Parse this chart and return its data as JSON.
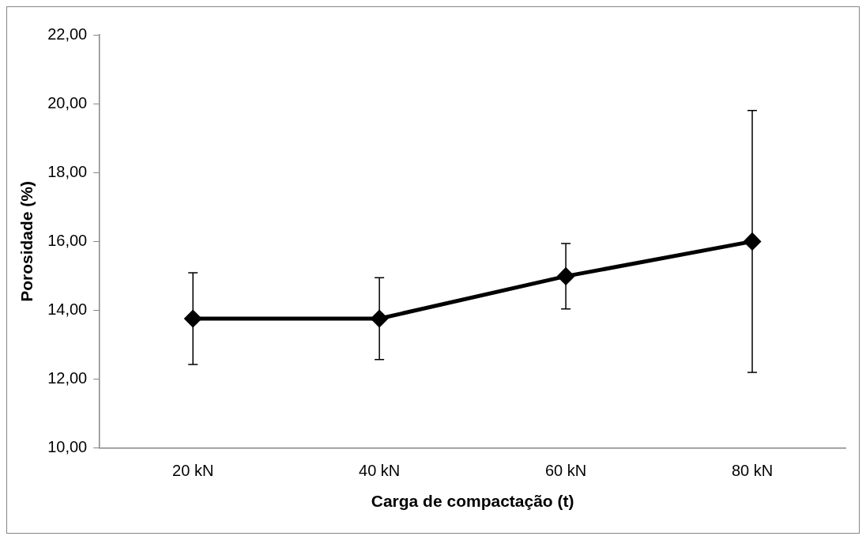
{
  "chart_data": {
    "type": "line",
    "xlabel": "Carga de compactação (t)",
    "ylabel": "Porosidade (%)",
    "categories": [
      "20 kN",
      "40 kN",
      "60 kN",
      "80 kN"
    ],
    "series": [
      {
        "color": "#000000",
        "values": [
          13.76,
          13.76,
          14.99,
          16.0
        ],
        "errors": [
          1.33,
          1.19,
          0.95,
          3.8
        ]
      }
    ],
    "ylim": [
      10,
      22
    ],
    "yticks": [
      {
        "value": 10,
        "label": "10,00"
      },
      {
        "value": 12,
        "label": "12,00"
      },
      {
        "value": 14,
        "label": "14,00"
      },
      {
        "value": 16,
        "label": "16,00"
      },
      {
        "value": 18,
        "label": "18,00"
      },
      {
        "value": 20,
        "label": "20,00"
      },
      {
        "value": 22,
        "label": "22,00"
      }
    ],
    "grid": false,
    "legend": false,
    "marker": "diamond",
    "line_style": "solid"
  }
}
